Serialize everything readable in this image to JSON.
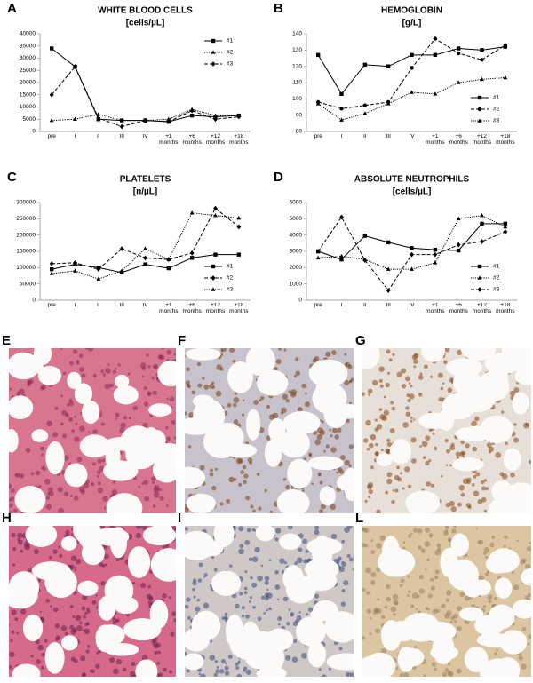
{
  "chart_data": [
    {
      "type": "line",
      "panel": "A",
      "title": "WHITE BLOOD CELLS",
      "subtitle": "[cells/µL]",
      "categories": [
        "pre",
        "I",
        "II",
        "III",
        "IV",
        "+1 months",
        "+6 months",
        "+12 months",
        "+18 months"
      ],
      "ylim": [
        0,
        40000
      ],
      "yticks": [
        0,
        5000,
        10000,
        15000,
        20000,
        25000,
        30000,
        35000,
        40000
      ],
      "legend": "upper right",
      "series": [
        {
          "name": "#1",
          "color": "#000000",
          "linestyle": "solid",
          "marker": "square",
          "values": [
            34000,
            26500,
            5000,
            4500,
            4500,
            4000,
            6500,
            6000,
            6500
          ]
        },
        {
          "name": "#2",
          "color": "#000000",
          "linestyle": "dotted",
          "marker": "triangle",
          "values": [
            4500,
            5000,
            7000,
            4500,
            4500,
            5000,
            9000,
            6500,
            6500
          ]
        },
        {
          "name": "#3",
          "color": "#000000",
          "linestyle": "dashed",
          "marker": "diamond",
          "values": [
            15000,
            26500,
            5500,
            2000,
            4500,
            4000,
            8500,
            5000,
            6000
          ]
        }
      ]
    },
    {
      "type": "line",
      "panel": "B",
      "title": "HEMOGLOBIN",
      "subtitle": "[g/L]",
      "categories": [
        "pre",
        "I",
        "II",
        "III",
        "IV",
        "+1 months",
        "+6 months",
        "+12 months",
        "+18 months"
      ],
      "ylim": [
        80,
        140
      ],
      "yticks": [
        80,
        90,
        100,
        110,
        120,
        130,
        140
      ],
      "legend": "lower right",
      "series": [
        {
          "name": "#1",
          "color": "#000000",
          "linestyle": "solid",
          "marker": "square",
          "values": [
            127,
            103,
            121,
            120,
            127,
            127,
            131,
            130,
            132
          ]
        },
        {
          "name": "#2",
          "color": "#000000",
          "linestyle": "dashed",
          "marker": "circle",
          "values": [
            98,
            94,
            96,
            98,
            119,
            137,
            128,
            124,
            133
          ]
        },
        {
          "name": "#3",
          "color": "#000000",
          "linestyle": "dotted",
          "marker": "triangle",
          "values": [
            97,
            87,
            91,
            97,
            104,
            103,
            110,
            112,
            113
          ]
        }
      ]
    },
    {
      "type": "line",
      "panel": "C",
      "title": "PLATELETS",
      "subtitle": "[n/µL]",
      "categories": [
        "pre",
        "I",
        "II",
        "III",
        "IV",
        "+1 months",
        "+6 months",
        "+12 months",
        "+18 months"
      ],
      "ylim": [
        0,
        300000
      ],
      "yticks": [
        0,
        50000,
        100000,
        150000,
        200000,
        250000,
        300000
      ],
      "legend": "lower right",
      "series": [
        {
          "name": "#1",
          "color": "#000000",
          "linestyle": "solid",
          "marker": "square",
          "values": [
            95000,
            110000,
            100000,
            85000,
            110000,
            98000,
            130000,
            140000,
            140000
          ]
        },
        {
          "name": "#2",
          "color": "#000000",
          "linestyle": "dashed",
          "marker": "diamond",
          "values": [
            112000,
            115000,
            95000,
            158000,
            130000,
            125000,
            145000,
            282000,
            225000
          ]
        },
        {
          "name": "#3",
          "color": "#000000",
          "linestyle": "dotted",
          "marker": "triangle",
          "values": [
            82000,
            90000,
            65000,
            90000,
            158000,
            125000,
            268000,
            260000,
            252000
          ]
        }
      ]
    },
    {
      "type": "line",
      "panel": "D",
      "title": "ABSOLUTE NEUTROPHILS",
      "subtitle": "[cells/µL]",
      "categories": [
        "pre",
        "I",
        "II",
        "III",
        "IV",
        "+1 months",
        "+6 months",
        "+12 months",
        "+18 months"
      ],
      "ylim": [
        0,
        6000
      ],
      "yticks": [
        0,
        1000,
        2000,
        3000,
        4000,
        5000,
        6000
      ],
      "legend": "lower right",
      "series": [
        {
          "name": "#1",
          "color": "#000000",
          "linestyle": "solid",
          "marker": "square",
          "values": [
            3000,
            2500,
            3950,
            3550,
            3200,
            3100,
            3050,
            4700,
            4700
          ]
        },
        {
          "name": "#2",
          "color": "#000000",
          "linestyle": "dotted",
          "marker": "triangle",
          "values": [
            2600,
            2700,
            2500,
            1900,
            1900,
            2300,
            5000,
            5200,
            4500
          ]
        },
        {
          "name": "#3",
          "color": "#000000",
          "linestyle": "dashed",
          "marker": "diamond",
          "values": [
            3000,
            5100,
            2450,
            600,
            2800,
            2800,
            3400,
            3600,
            4200
          ]
        }
      ]
    }
  ],
  "image_panels": [
    {
      "label": "E",
      "tissue": "#d8758f",
      "spots": "#8e2b58"
    },
    {
      "label": "F",
      "tissue": "#c7c2cc",
      "spots": "#7a3f12"
    },
    {
      "label": "G",
      "tissue": "#e7e0d8",
      "spots": "#8b4514"
    },
    {
      "label": "H",
      "tissue": "#d66a8a",
      "spots": "#6a2050"
    },
    {
      "label": "I",
      "tissue": "#cfc8c6",
      "spots": "#3b4a80"
    },
    {
      "label": "L",
      "tissue": "#dcc6a2",
      "spots": "#9a8060"
    }
  ]
}
